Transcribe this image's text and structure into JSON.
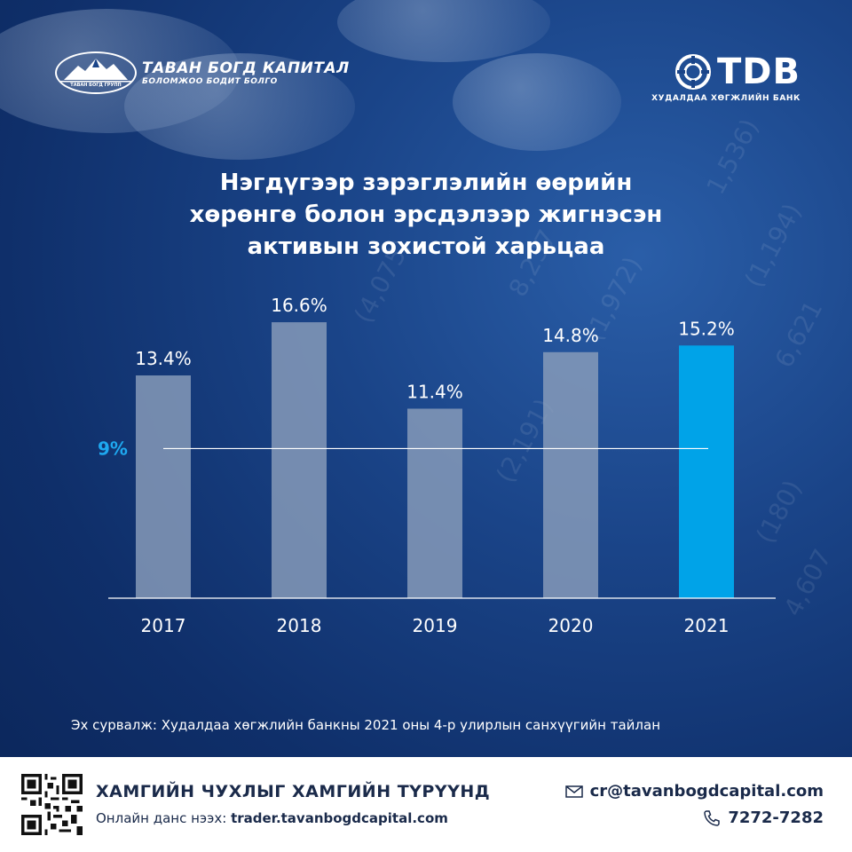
{
  "header": {
    "left_logo": {
      "name": "ТАВАН БОГД КАПИТАЛ",
      "tagline": "БОЛОМЖОО БОДИТ БОЛГО",
      "emblem_text": "ТАВАН БОГД ГРУПП",
      "icon": "mountain-logo-icon"
    },
    "right_logo": {
      "name": "TDB",
      "subtitle": "ХУДАЛДАА ХӨГЖЛИЙН БАНК",
      "icon": "tdb-emblem-icon"
    }
  },
  "chart_data": {
    "type": "bar",
    "title": "Нэгдүгээр зэрэглэлийн өөрийн хөрөнгө болон эрсдэлээр жигнэсэн активын зохистой харьцаа",
    "title_lines": [
      "Нэгдүгээр зэрэглэлийн өөрийн",
      "хөрөнгө болон эрсдэлээр жигнэсэн",
      "активын зохистой харьцаа"
    ],
    "categories": [
      "2017",
      "2018",
      "2019",
      "2020",
      "2021"
    ],
    "values": [
      13.4,
      16.6,
      11.4,
      14.8,
      15.2
    ],
    "value_labels": [
      "13.4%",
      "16.6%",
      "11.4%",
      "14.8%",
      "15.2%"
    ],
    "highlight_index": 4,
    "threshold": {
      "value": 9,
      "label": "9%"
    },
    "ylim": [
      0,
      18.9
    ],
    "grid": false,
    "colors": {
      "bar": "#8a9dbb",
      "highlight": "#00a3e8",
      "threshold_label": "#1ea8f0"
    }
  },
  "source": "Эх сурвалж: Худалдаа хөгжлийн банкны 2021 оны 4-р улирлын санхүүгийн  тайлан",
  "footer": {
    "slogan": "ХАМГИЙН ЧУХЛЫГ ХАМГИЙН ТҮРҮҮНД",
    "online_prefix": "Онлайн данс нээх: ",
    "online_url": "trader.tavanbogdcapital.com",
    "email": "cr@tavanbogdcapital.com",
    "phone": "7272-7282",
    "icons": [
      "qr-code-icon",
      "mail-icon",
      "phone-icon"
    ]
  }
}
